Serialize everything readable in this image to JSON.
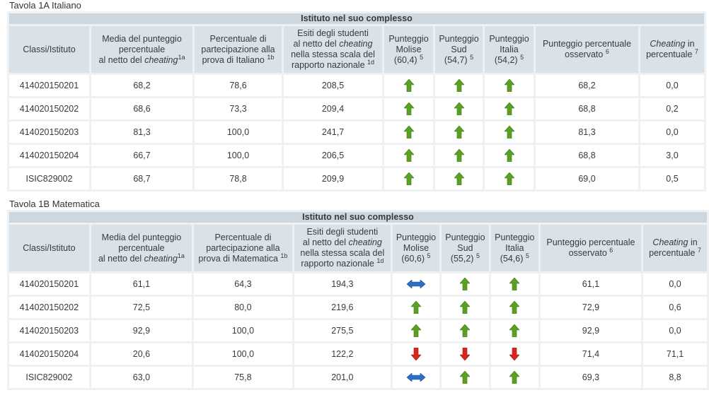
{
  "tables": [
    {
      "title": "Tavola 1A Italiano",
      "banner": "Istituto nel suo complesso",
      "headers": {
        "classi": "Classi/Istituto",
        "media_l1": "Media del punteggio",
        "media_l2": "percentuale",
        "media_l3": "al netto del",
        "media_it": "cheating",
        "media_sup": "1a",
        "perc_l1": "Percentuale di",
        "perc_l2": "partecipazione alla",
        "perc_l3": "prova di Italiano",
        "perc_sup": "1b",
        "esiti_l1": "Esiti degli studenti",
        "esiti_l2a": "al netto del",
        "esiti_it": "cheating",
        "esiti_l3": "nella stessa scala del",
        "esiti_l4": "rapporto nazionale",
        "esiti_sup": "1d",
        "molise_l1": "Punteggio",
        "molise_l2": "Molise",
        "molise_l3": "(60,4)",
        "sud_l1": "Punteggio",
        "sud_l2": "Sud",
        "sud_l3": "(54,7)",
        "italia_l1": "Punteggio",
        "italia_l2": "Italia",
        "italia_l3": "(54,2)",
        "cmp_sup": "5",
        "oss_l1": "Punteggio percentuale",
        "oss_l2": "osservato",
        "oss_sup": "6",
        "cheat_it": "Cheating",
        "cheat_l1": "in",
        "cheat_l2": "percentuale",
        "cheat_sup": "7"
      },
      "rows": [
        {
          "classe": "414020150201",
          "media": "68,2",
          "partecipazione": "78,6",
          "esiti": "208,5",
          "molise": "up",
          "sud": "up",
          "italia": "up",
          "osservato": "68,2",
          "cheating": "0,0"
        },
        {
          "classe": "414020150202",
          "media": "68,6",
          "partecipazione": "73,3",
          "esiti": "209,4",
          "molise": "up",
          "sud": "up",
          "italia": "up",
          "osservato": "68,8",
          "cheating": "0,2"
        },
        {
          "classe": "414020150203",
          "media": "81,3",
          "partecipazione": "100,0",
          "esiti": "241,7",
          "molise": "up",
          "sud": "up",
          "italia": "up",
          "osservato": "81,3",
          "cheating": "0,0"
        },
        {
          "classe": "414020150204",
          "media": "66,7",
          "partecipazione": "100,0",
          "esiti": "206,5",
          "molise": "up",
          "sud": "up",
          "italia": "up",
          "osservato": "68,8",
          "cheating": "3,0"
        },
        {
          "classe": "ISIC829002",
          "media": "68,7",
          "partecipazione": "78,8",
          "esiti": "209,9",
          "molise": "up",
          "sud": "up",
          "italia": "up",
          "osservato": "69,0",
          "cheating": "0,5"
        }
      ]
    },
    {
      "title": "Tavola 1B Matematica",
      "banner": "Istituto nel suo complesso",
      "headers": {
        "classi": "Classi/Istituto",
        "media_l1": "Media del punteggio",
        "media_l2": "percentuale",
        "media_l3": "al netto del",
        "media_it": "cheating",
        "media_sup": "1a",
        "perc_l1": "Percentuale di",
        "perc_l2": "partecipazione alla",
        "perc_l3": "prova di Matematica",
        "perc_sup": "1b",
        "esiti_l1": "Esiti degli studenti",
        "esiti_l2a": "al netto del",
        "esiti_it": "cheating",
        "esiti_l3": "nella stessa scala del",
        "esiti_l4": "rapporto nazionale",
        "esiti_sup": "1d",
        "molise_l1": "Punteggio",
        "molise_l2": "Molise",
        "molise_l3": "(60,6)",
        "sud_l1": "Punteggio",
        "sud_l2": "Sud",
        "sud_l3": "(55,2)",
        "italia_l1": "Punteggio",
        "italia_l2": "Italia",
        "italia_l3": "(54,6)",
        "cmp_sup": "5",
        "oss_l1": "Punteggio percentuale",
        "oss_l2": "osservato",
        "oss_sup": "6",
        "cheat_it": "Cheating",
        "cheat_l1": "in",
        "cheat_l2": "percentuale",
        "cheat_sup": "7"
      },
      "rows": [
        {
          "classe": "414020150201",
          "media": "61,1",
          "partecipazione": "64,3",
          "esiti": "194,3",
          "molise": "equal",
          "sud": "up",
          "italia": "up",
          "osservato": "61,1",
          "cheating": "0,0"
        },
        {
          "classe": "414020150202",
          "media": "72,5",
          "partecipazione": "80,0",
          "esiti": "219,6",
          "molise": "up",
          "sud": "up",
          "italia": "up",
          "osservato": "72,9",
          "cheating": "0,6"
        },
        {
          "classe": "414020150203",
          "media": "92,9",
          "partecipazione": "100,0",
          "esiti": "275,5",
          "molise": "up",
          "sud": "up",
          "italia": "up",
          "osservato": "92,9",
          "cheating": "0,0"
        },
        {
          "classe": "414020150204",
          "media": "20,6",
          "partecipazione": "100,0",
          "esiti": "122,2",
          "molise": "down",
          "sud": "down",
          "italia": "down",
          "osservato": "71,4",
          "cheating": "71,1"
        },
        {
          "classe": "ISIC829002",
          "media": "63,0",
          "partecipazione": "75,8",
          "esiti": "201,0",
          "molise": "equal",
          "sud": "up",
          "italia": "up",
          "osservato": "69,3",
          "cheating": "8,8"
        }
      ]
    }
  ],
  "icons": {
    "up": {
      "name": "arrow-up-green-icon",
      "color": "#5aa123"
    },
    "down": {
      "name": "arrow-down-red-icon",
      "color": "#d9261c"
    },
    "equal": {
      "name": "arrow-left-right-blue-icon",
      "color": "#2e6fc4"
    }
  }
}
